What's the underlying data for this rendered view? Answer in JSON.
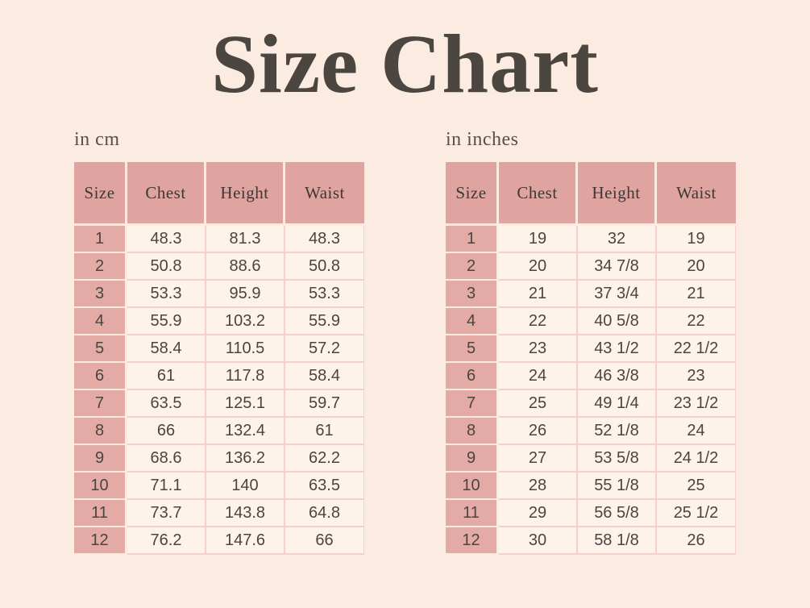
{
  "title": "Size Chart",
  "colors": {
    "background": "#fcebe1",
    "header_pink": "#dfa3a0",
    "size_pink": "#e3aaa6",
    "cell_cream": "#fdf3ea",
    "grid_pink": "#f3d2c9",
    "title_text": "#4b463f",
    "label_text": "#55504a",
    "number_text": "#4a453f",
    "header_text": "#3e3934"
  },
  "chart_data": [
    {
      "type": "table",
      "title": "in cm",
      "columns": [
        "Size",
        "Chest",
        "Height",
        "Waist"
      ],
      "rows": [
        [
          "1",
          "48.3",
          "81.3",
          "48.3"
        ],
        [
          "2",
          "50.8",
          "88.6",
          "50.8"
        ],
        [
          "3",
          "53.3",
          "95.9",
          "53.3"
        ],
        [
          "4",
          "55.9",
          "103.2",
          "55.9"
        ],
        [
          "5",
          "58.4",
          "110.5",
          "57.2"
        ],
        [
          "6",
          "61",
          "117.8",
          "58.4"
        ],
        [
          "7",
          "63.5",
          "125.1",
          "59.7"
        ],
        [
          "8",
          "66",
          "132.4",
          "61"
        ],
        [
          "9",
          "68.6",
          "136.2",
          "62.2"
        ],
        [
          "10",
          "71.1",
          "140",
          "63.5"
        ],
        [
          "11",
          "73.7",
          "143.8",
          "64.8"
        ],
        [
          "12",
          "76.2",
          "147.6",
          "66"
        ]
      ]
    },
    {
      "type": "table",
      "title": "in inches",
      "columns": [
        "Size",
        "Chest",
        "Height",
        "Waist"
      ],
      "rows": [
        [
          "1",
          "19",
          "32",
          "19"
        ],
        [
          "2",
          "20",
          "34 7/8",
          "20"
        ],
        [
          "3",
          "21",
          "37 3/4",
          "21"
        ],
        [
          "4",
          "22",
          "40 5/8",
          "22"
        ],
        [
          "5",
          "23",
          "43 1/2",
          "22 1/2"
        ],
        [
          "6",
          "24",
          "46 3/8",
          "23"
        ],
        [
          "7",
          "25",
          "49 1/4",
          "23 1/2"
        ],
        [
          "8",
          "26",
          "52 1/8",
          "24"
        ],
        [
          "9",
          "27",
          "53 5/8",
          "24 1/2"
        ],
        [
          "10",
          "28",
          "55 1/8",
          "25"
        ],
        [
          "11",
          "29",
          "56 5/8",
          "25 1/2"
        ],
        [
          "12",
          "30",
          "58 1/8",
          "26"
        ]
      ]
    }
  ]
}
